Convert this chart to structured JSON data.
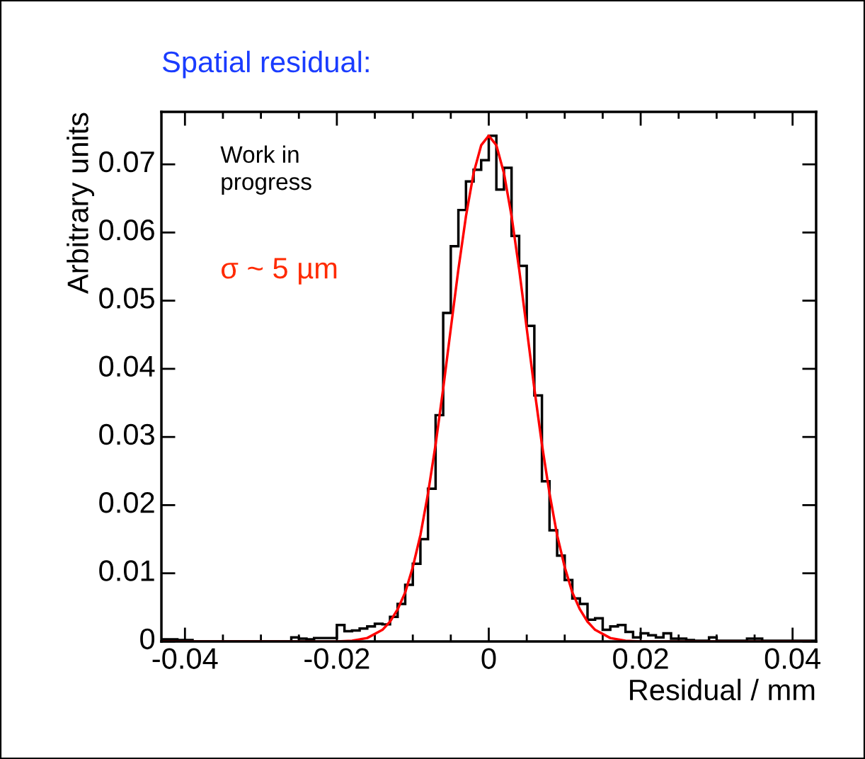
{
  "chart_data": {
    "type": "histogram",
    "title": "Spatial residual:",
    "xlabel": "Residual / mm",
    "ylabel": "Arbitrary units",
    "annotations": [
      "Work in\nprogress",
      "σ ~ 5 µm"
    ],
    "bins": [
      -0.043,
      -0.042,
      -0.041,
      -0.04,
      -0.039,
      -0.038,
      -0.037,
      -0.036,
      -0.035,
      -0.034,
      -0.033,
      -0.032,
      -0.031,
      -0.03,
      -0.029,
      -0.028,
      -0.027,
      -0.026,
      -0.025,
      -0.024,
      -0.023,
      -0.022,
      -0.021,
      -0.02,
      -0.019,
      -0.018,
      -0.017,
      -0.016,
      -0.015,
      -0.014,
      -0.013,
      -0.012,
      -0.011,
      -0.01,
      -0.009,
      -0.008,
      -0.007,
      -0.006,
      -0.005,
      -0.004,
      -0.003,
      -0.002,
      -0.001,
      0.0,
      0.001,
      0.002,
      0.003,
      0.004,
      0.005,
      0.006,
      0.007,
      0.008,
      0.009,
      0.01,
      0.011,
      0.012,
      0.013,
      0.014,
      0.015,
      0.016,
      0.017,
      0.018,
      0.019,
      0.02,
      0.021,
      0.022,
      0.023,
      0.024,
      0.025,
      0.026,
      0.027,
      0.028,
      0.029,
      0.03,
      0.031,
      0.032,
      0.033,
      0.034,
      0.035,
      0.036,
      0.037,
      0.038,
      0.039,
      0.04,
      0.041,
      0.042,
      0.043
    ],
    "values": [
      0.0003,
      0.0003,
      0.0002,
      0.0002,
      0,
      0,
      0,
      0,
      0,
      0,
      0,
      0,
      0,
      0,
      0,
      0,
      0,
      0.0006,
      0.0004,
      0.0003,
      0.0005,
      0.0005,
      0.0005,
      0.0024,
      0.0015,
      0.0016,
      0.0019,
      0.0022,
      0.0026,
      0.0025,
      0.0036,
      0.0055,
      0.0083,
      0.0114,
      0.015,
      0.0224,
      0.0332,
      0.0482,
      0.058,
      0.0633,
      0.0675,
      0.0692,
      0.0706,
      0.0742,
      0.0663,
      0.0695,
      0.0595,
      0.0551,
      0.0463,
      0.0361,
      0.0235,
      0.0163,
      0.0126,
      0.009,
      0.0063,
      0.0055,
      0.0032,
      0.0034,
      0.0017,
      0.0022,
      0.0024,
      0.0014,
      0.0006,
      0.0012,
      0.0009,
      0.0006,
      0.0012,
      0.0004,
      0.0004,
      0.0002,
      0.0001,
      0.0001,
      0.0006,
      0.0001,
      0.0001,
      0.0001,
      0.0001,
      0.0004,
      0.0004,
      0.0001,
      0.0001,
      0.0001,
      0.0001,
      0.0001,
      0.0001,
      0.0001
    ],
    "color": "#000000",
    "series": [
      {
        "type": "line",
        "color": "#ff0000",
        "x": [
          -0.043,
          -0.02,
          -0.018,
          -0.016,
          -0.014,
          -0.013,
          -0.012,
          -0.011,
          -0.01,
          -0.009,
          -0.008,
          -0.007,
          -0.006,
          -0.005,
          -0.004,
          -0.003,
          -0.002,
          -0.001,
          0.0,
          0.001,
          0.002,
          0.003,
          0.004,
          0.005,
          0.006,
          0.007,
          0.008,
          0.009,
          0.01,
          0.011,
          0.012,
          0.013,
          0.014,
          0.016,
          0.018,
          0.02,
          0.0423
        ],
        "values": [
          0,
          0,
          0.0001,
          0.0005,
          0.0017,
          0.0029,
          0.0047,
          0.0072,
          0.0109,
          0.0156,
          0.0217,
          0.0289,
          0.0371,
          0.0459,
          0.0546,
          0.0624,
          0.0687,
          0.0728,
          0.0742,
          0.0728,
          0.0687,
          0.0624,
          0.0546,
          0.0459,
          0.0371,
          0.0289,
          0.0217,
          0.0156,
          0.0109,
          0.0072,
          0.0047,
          0.0029,
          0.0017,
          0.0005,
          0.0001,
          0,
          0
        ]
      }
    ],
    "xlim": [
      -0.0431,
      0.0431
    ],
    "ylim": [
      0,
      0.0777
    ],
    "xticks": [
      -0.04,
      -0.02,
      0,
      0.02,
      0.04
    ],
    "yticks": [
      0,
      0.01,
      0.02,
      0.03,
      0.04,
      0.05,
      0.06,
      0.07
    ],
    "grid": false,
    "legend": false,
    "marker": "none",
    "line_style": "solid"
  }
}
